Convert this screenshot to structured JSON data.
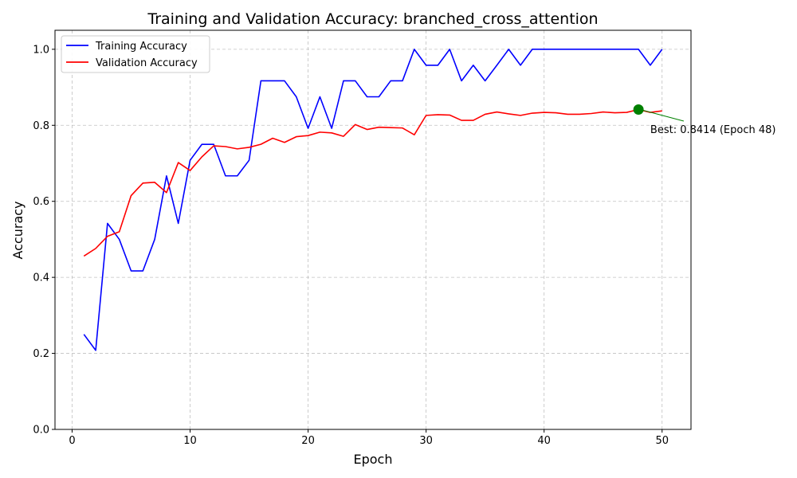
{
  "chart_data": {
    "type": "line",
    "title": "Training and Validation Accuracy: branched_cross_attention",
    "xlabel": "Epoch",
    "ylabel": "Accuracy",
    "xlim": [
      -1.45,
      52.45
    ],
    "ylim": [
      0.0,
      1.05
    ],
    "xticks": [
      0,
      10,
      20,
      30,
      40,
      50
    ],
    "yticks": [
      0.0,
      0.2,
      0.4,
      0.6,
      0.8,
      1.0
    ],
    "xtick_labels": [
      "0",
      "10",
      "20",
      "30",
      "40",
      "50"
    ],
    "ytick_labels": [
      "0.0",
      "0.2",
      "0.4",
      "0.6",
      "0.8",
      "1.0"
    ],
    "grid": true,
    "legend_position": "top-left",
    "x": [
      1,
      2,
      3,
      4,
      5,
      6,
      7,
      8,
      9,
      10,
      11,
      12,
      13,
      14,
      15,
      16,
      17,
      18,
      19,
      20,
      21,
      22,
      23,
      24,
      25,
      26,
      27,
      28,
      29,
      30,
      31,
      32,
      33,
      34,
      35,
      36,
      37,
      38,
      39,
      40,
      41,
      42,
      43,
      44,
      45,
      46,
      47,
      48,
      49,
      50
    ],
    "series": [
      {
        "name": "Training Accuracy",
        "color": "#0000ff",
        "values": [
          0.25,
          0.208,
          0.542,
          0.5,
          0.417,
          0.417,
          0.5,
          0.667,
          0.542,
          0.708,
          0.75,
          0.75,
          0.667,
          0.667,
          0.708,
          0.917,
          0.917,
          0.917,
          0.875,
          0.792,
          0.875,
          0.792,
          0.917,
          0.917,
          0.875,
          0.875,
          0.917,
          0.917,
          1.0,
          0.958,
          0.958,
          1.0,
          0.917,
          0.958,
          0.917,
          0.958,
          1.0,
          0.958,
          1.0,
          1.0,
          1.0,
          1.0,
          1.0,
          1.0,
          1.0,
          1.0,
          1.0,
          1.0,
          0.958,
          1.0
        ]
      },
      {
        "name": "Validation Accuracy",
        "color": "#ff0000",
        "values": [
          0.456,
          0.476,
          0.508,
          0.52,
          0.615,
          0.648,
          0.65,
          0.623,
          0.702,
          0.681,
          0.717,
          0.746,
          0.744,
          0.738,
          0.742,
          0.75,
          0.766,
          0.755,
          0.77,
          0.773,
          0.782,
          0.78,
          0.771,
          0.802,
          0.789,
          0.795,
          0.794,
          0.793,
          0.775,
          0.826,
          0.828,
          0.827,
          0.813,
          0.813,
          0.829,
          0.835,
          0.83,
          0.826,
          0.832,
          0.834,
          0.833,
          0.829,
          0.829,
          0.831,
          0.835,
          0.833,
          0.834,
          0.8414,
          0.834,
          0.838
        ]
      }
    ],
    "annotation": {
      "text": "Best: 0.8414 (Epoch 48)",
      "x": 48,
      "y": 0.8414,
      "text_x": 49,
      "text_y": 0.788,
      "marker_color": "#008000",
      "arrow_color": "#008000"
    }
  }
}
